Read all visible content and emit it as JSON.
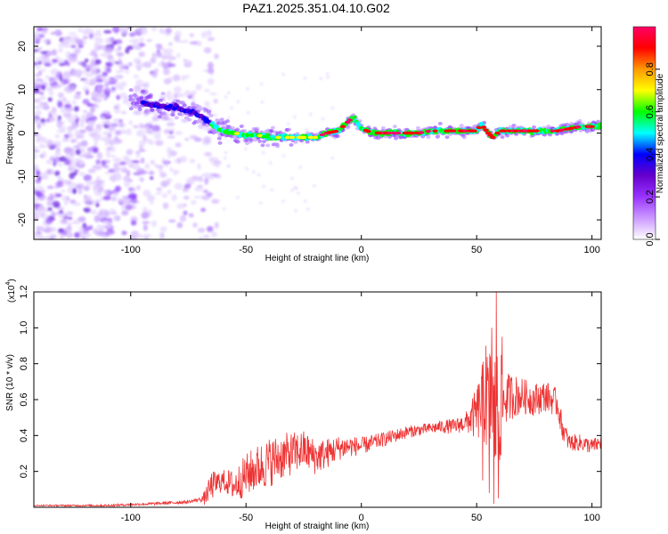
{
  "title": "PAZ1.2025.351.04.10.G02",
  "chart_data": [
    {
      "type": "heatmap",
      "name": "spectrogram",
      "xlabel": "Height of straight line (km)",
      "ylabel": "Frequency (Hz)",
      "xlim": [
        -142,
        104
      ],
      "ylim": [
        -24.5,
        24.5
      ],
      "xticks": [
        -100,
        -50,
        0,
        50,
        100
      ],
      "yticks": [
        -20,
        -10,
        0,
        10,
        20
      ],
      "ridge": {
        "x": [
          -100,
          -95,
          -90,
          -85,
          -80,
          -75,
          -70,
          -65,
          -60,
          -55,
          -50,
          -45,
          -40,
          -35,
          -30,
          -25,
          -20,
          -15,
          -10,
          -5,
          -3,
          0,
          5,
          10,
          15,
          20,
          25,
          30,
          35,
          40,
          45,
          50,
          52,
          55,
          57,
          60,
          65,
          70,
          75,
          80,
          85,
          90,
          95,
          100,
          104
        ],
        "freq": [
          8,
          7,
          6.5,
          6,
          6,
          5,
          4,
          2,
          0.5,
          0,
          -0.5,
          -0.5,
          -1,
          -1,
          -1,
          -1,
          -1,
          0,
          0.5,
          3,
          3.5,
          1,
          0,
          0,
          0,
          0,
          0,
          0.5,
          0.5,
          0.5,
          0.5,
          0.5,
          2,
          0,
          -1,
          0.5,
          0.5,
          0.5,
          0.5,
          0.5,
          0.5,
          1,
          1.5,
          1.5,
          1.5
        ]
      },
      "colorbar": {
        "label": "Normalized spectral amplitude",
        "range": [
          0,
          1
        ],
        "ticks": [
          "0.0",
          "0.2",
          "0.4",
          "0.6",
          "0.8"
        ],
        "colors": [
          "#ffffff",
          "#cc99ff",
          "#9933ff",
          "#6600cc",
          "#0000ff",
          "#00ffff",
          "#00ff00",
          "#ffff00",
          "#ff9900",
          "#ff0000",
          "#ff0066"
        ]
      }
    },
    {
      "type": "line",
      "name": "snr",
      "xlabel": "Height of straight line (km)",
      "ylabel": "SNR (10 * v/v)",
      "scale_label": "(x10",
      "scale_exp": "4",
      "scale_close": ")",
      "xlim": [
        -142,
        104
      ],
      "ylim": [
        0,
        1.2
      ],
      "xticks": [
        -100,
        -50,
        0,
        50,
        100
      ],
      "yticks": [
        "0.2",
        "0.4",
        "0.6",
        "0.8",
        "1.0",
        "1.2"
      ],
      "color": "#ee3333",
      "envelope": {
        "x": [
          -142,
          -110,
          -90,
          -75,
          -68,
          -65,
          -60,
          -55,
          -50,
          -45,
          -40,
          -35,
          -30,
          -25,
          -20,
          -15,
          -10,
          -5,
          0,
          5,
          10,
          15,
          20,
          25,
          30,
          35,
          40,
          45,
          50,
          52,
          55,
          57,
          58,
          60,
          62,
          65,
          70,
          75,
          80,
          85,
          87,
          90,
          95,
          100,
          104
        ],
        "y": [
          0.01,
          0.01,
          0.02,
          0.03,
          0.05,
          0.12,
          0.15,
          0.12,
          0.18,
          0.22,
          0.25,
          0.28,
          0.3,
          0.32,
          0.28,
          0.3,
          0.33,
          0.34,
          0.34,
          0.36,
          0.38,
          0.4,
          0.42,
          0.43,
          0.44,
          0.45,
          0.45,
          0.47,
          0.52,
          0.58,
          0.6,
          0.55,
          0.5,
          0.55,
          0.6,
          0.62,
          0.62,
          0.6,
          0.62,
          0.58,
          0.45,
          0.36,
          0.36,
          0.34,
          0.36
        ]
      },
      "amplitude": {
        "x": [
          -142,
          -70,
          -65,
          -60,
          -50,
          -40,
          -30,
          -20,
          -10,
          0,
          10,
          30,
          45,
          50,
          55,
          58,
          60,
          62,
          70,
          85,
          90,
          104
        ],
        "a": [
          0.003,
          0.01,
          0.08,
          0.06,
          0.12,
          0.14,
          0.12,
          0.1,
          0.07,
          0.05,
          0.04,
          0.03,
          0.05,
          0.15,
          0.3,
          0.4,
          0.35,
          0.15,
          0.1,
          0.08,
          0.05,
          0.04
        ]
      },
      "spikes": [
        {
          "x": 58.5,
          "y": 1.2
        },
        {
          "x": 57.5,
          "y": 0.02
        },
        {
          "x": 56.5,
          "y": 1.0
        },
        {
          "x": 55.5,
          "y": 0.08
        },
        {
          "x": 54.0,
          "y": 0.9
        },
        {
          "x": 59.5,
          "y": 0.05
        },
        {
          "x": 61.0,
          "y": 0.95
        },
        {
          "x": 52.5,
          "y": 0.15
        }
      ]
    }
  ]
}
